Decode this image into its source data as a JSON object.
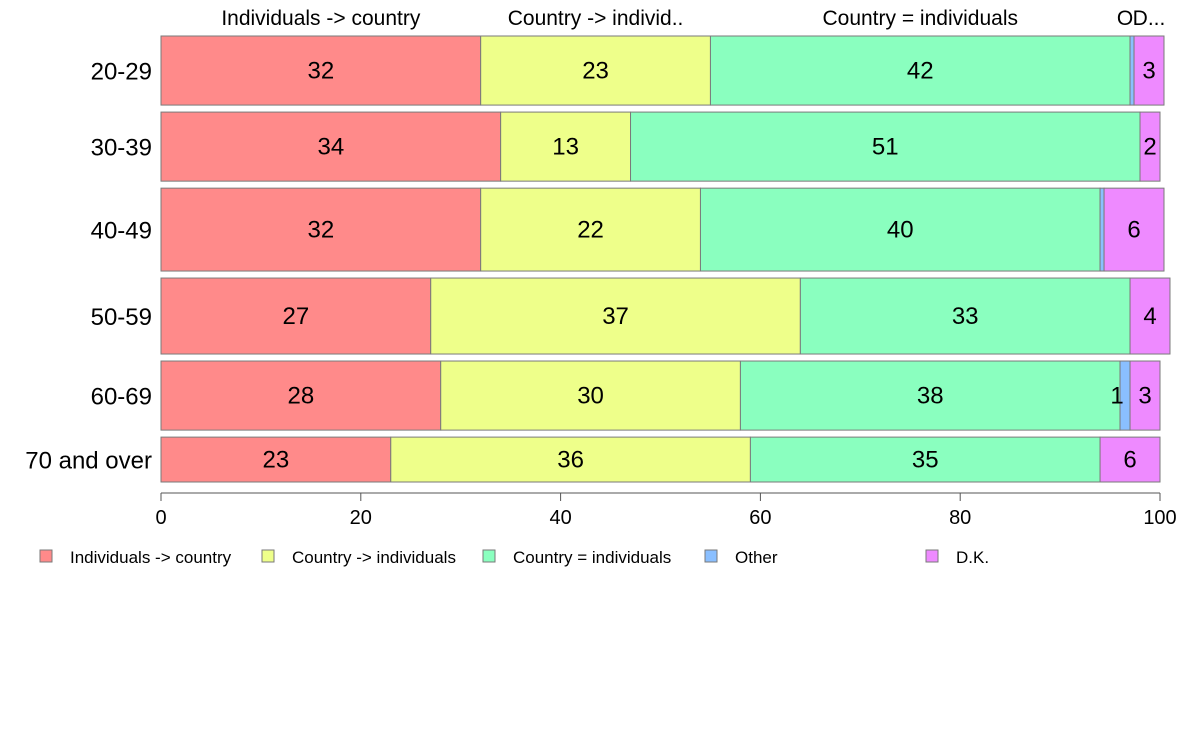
{
  "chart_data": {
    "type": "bar",
    "orientation": "horizontal",
    "stacked": true,
    "title": "",
    "xlabel": "",
    "ylabel": "",
    "xlim": [
      0,
      100
    ],
    "xticks": [
      0,
      20,
      40,
      60,
      80,
      100
    ],
    "grid": false,
    "legend_position": "bottom",
    "categories": [
      "20-29",
      "30-39",
      "40-49",
      "50-59",
      "60-69",
      "70 and over"
    ],
    "row_heights_relative": [
      1,
      1,
      1.2,
      1.1,
      1,
      0.65
    ],
    "series": [
      {
        "name": "Individuals -> country",
        "short_label": "Individuals -> country",
        "color": "#ff8a8a",
        "values": [
          32,
          34,
          32,
          27,
          28,
          23
        ]
      },
      {
        "name": "Country -> individuals",
        "short_label": "Country -> individ..",
        "color": "#eeff8a",
        "values": [
          23,
          13,
          22,
          37,
          30,
          36
        ]
      },
      {
        "name": "Country = individuals",
        "short_label": "Country = individuals",
        "color": "#8affbf",
        "values": [
          42,
          51,
          40,
          33,
          38,
          35
        ]
      },
      {
        "name": "Other",
        "short_label": "O",
        "color": "#8abfff",
        "values": [
          0.4,
          0,
          0.4,
          0,
          1,
          0
        ]
      },
      {
        "name": "D.K.",
        "short_label": "D...",
        "color": "#ee8aff",
        "values": [
          3,
          2,
          6,
          4,
          3,
          6
        ]
      }
    ],
    "data_labels": [
      [
        "32",
        "23",
        "42",
        "",
        "3"
      ],
      [
        "34",
        "13",
        "51",
        "",
        "2"
      ],
      [
        "32",
        "22",
        "40",
        "",
        "6"
      ],
      [
        "27",
        "37",
        "33",
        "",
        "4"
      ],
      [
        "28",
        "30",
        "38",
        "1",
        "3"
      ],
      [
        "23",
        "36",
        "35",
        "",
        "6"
      ]
    ]
  }
}
